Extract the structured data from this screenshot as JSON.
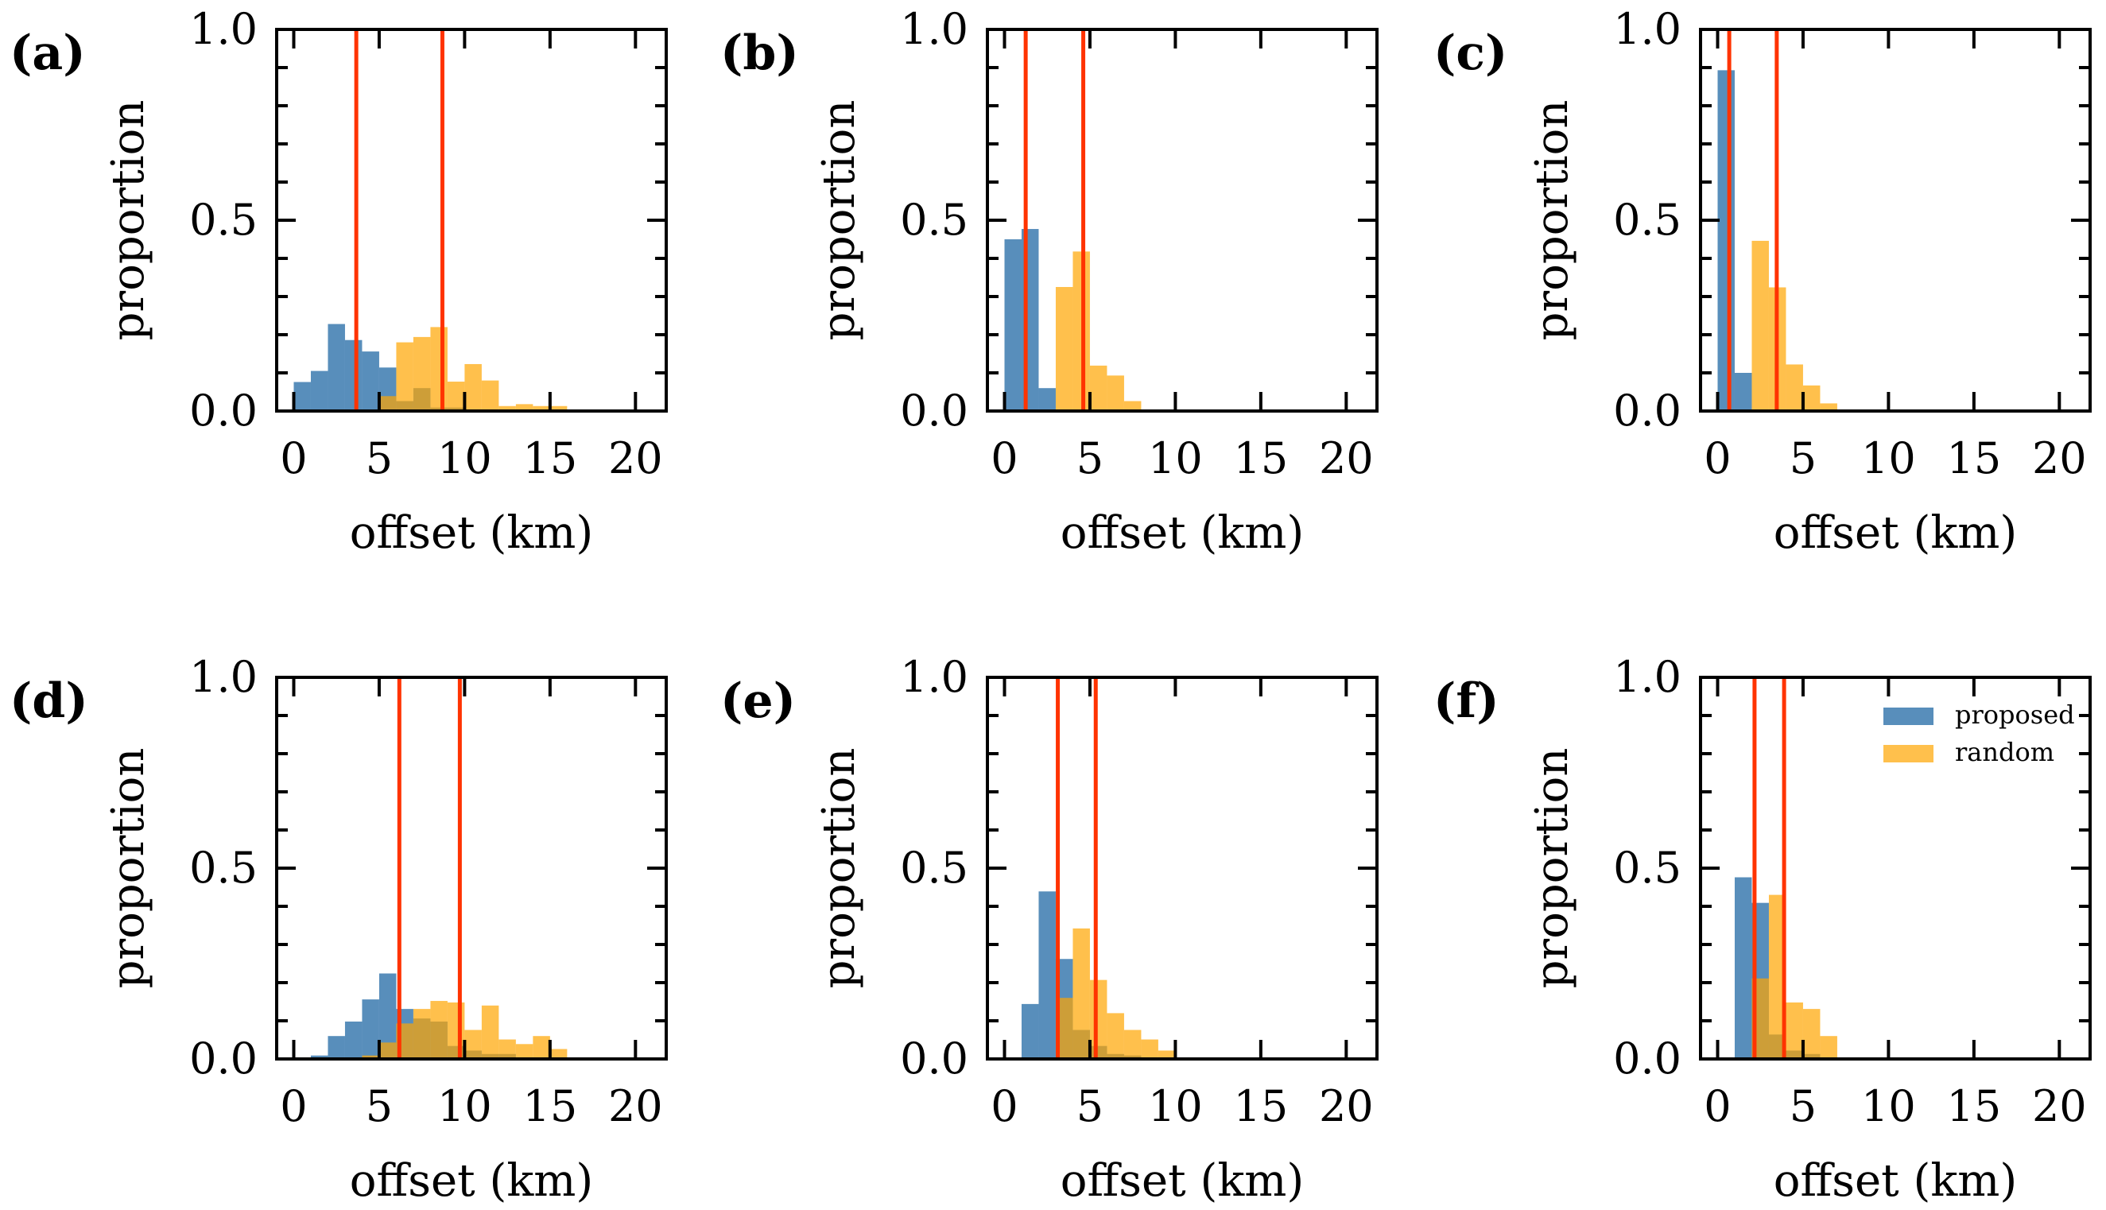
{
  "chart_data": [
    {
      "type": "bar",
      "panel": "(a)",
      "xlabel": "offset (km)",
      "ylabel": "proportion",
      "xlim": [
        -1,
        21.8
      ],
      "ylim": [
        0,
        1
      ],
      "xticks": [
        "0",
        "5",
        "10",
        "15",
        "20"
      ],
      "yticks": [
        "0.0",
        "0.5",
        "1.0"
      ],
      "bin_width": 1,
      "series": [
        {
          "name": "proposed",
          "bin_starts": [
            0,
            1,
            2,
            3,
            4,
            5,
            6,
            7,
            8,
            9
          ],
          "values": [
            0.076,
            0.105,
            0.228,
            0.186,
            0.156,
            0.114,
            0.026,
            0.06,
            0.009,
            0.009
          ]
        },
        {
          "name": "random",
          "bin_starts": [
            5,
            6,
            7,
            8,
            9,
            10,
            11,
            12,
            13,
            14,
            15
          ],
          "values": [
            0.039,
            0.18,
            0.194,
            0.22,
            0.077,
            0.123,
            0.08,
            0.013,
            0.018,
            0.013,
            0.013
          ]
        }
      ],
      "vlines": [
        3.66,
        8.7
      ]
    },
    {
      "type": "bar",
      "panel": "(b)",
      "xlabel": "offset (km)",
      "ylabel": "proportion",
      "xlim": [
        -1,
        21.8
      ],
      "ylim": [
        0,
        1
      ],
      "xticks": [
        "0",
        "5",
        "10",
        "15",
        "20"
      ],
      "yticks": [
        "0.0",
        "0.5",
        "1.0"
      ],
      "bin_width": 1,
      "series": [
        {
          "name": "proposed",
          "bin_starts": [
            0,
            1,
            2
          ],
          "values": [
            0.45,
            0.477,
            0.06
          ]
        },
        {
          "name": "random",
          "bin_starts": [
            3,
            4,
            5,
            6,
            7
          ],
          "values": [
            0.325,
            0.418,
            0.119,
            0.093,
            0.026
          ]
        }
      ],
      "vlines": [
        1.24,
        4.61
      ]
    },
    {
      "type": "bar",
      "panel": "(c)",
      "xlabel": "offset (km)",
      "ylabel": "proportion",
      "xlim": [
        -1,
        21.8
      ],
      "ylim": [
        0,
        1
      ],
      "xticks": [
        "0",
        "5",
        "10",
        "15",
        "20"
      ],
      "yticks": [
        "0.0",
        "0.5",
        "1.0"
      ],
      "bin_width": 1,
      "series": [
        {
          "name": "proposed",
          "bin_starts": [
            0,
            1
          ],
          "values": [
            0.893,
            0.1
          ]
        },
        {
          "name": "random",
          "bin_starts": [
            2,
            3,
            4,
            5,
            6
          ],
          "values": [
            0.446,
            0.324,
            0.122,
            0.067,
            0.02
          ]
        }
      ],
      "vlines": [
        0.68,
        3.46
      ]
    },
    {
      "type": "bar",
      "panel": "(d)",
      "xlabel": "offset (km)",
      "ylabel": "proportion",
      "xlim": [
        -1,
        21.8
      ],
      "ylim": [
        0,
        1
      ],
      "xticks": [
        "0",
        "5",
        "10",
        "15",
        "20"
      ],
      "yticks": [
        "0.0",
        "0.5",
        "1.0"
      ],
      "bin_width": 1,
      "series": [
        {
          "name": "proposed",
          "bin_starts": [
            1,
            2,
            3,
            4,
            5,
            6,
            7,
            8,
            9,
            10,
            11,
            12
          ],
          "values": [
            0.009,
            0.06,
            0.098,
            0.156,
            0.224,
            0.131,
            0.106,
            0.098,
            0.034,
            0.022,
            0.013,
            0.013
          ]
        },
        {
          "name": "random",
          "bin_starts": [
            4,
            5,
            6,
            7,
            8,
            9,
            10,
            11,
            12,
            13,
            14,
            15
          ],
          "values": [
            0.009,
            0.043,
            0.093,
            0.131,
            0.152,
            0.148,
            0.076,
            0.14,
            0.051,
            0.039,
            0.06,
            0.026
          ]
        }
      ],
      "vlines": [
        6.18,
        9.72
      ]
    },
    {
      "type": "bar",
      "panel": "(e)",
      "xlabel": "offset (km)",
      "ylabel": "proportion",
      "xlim": [
        -1,
        21.8
      ],
      "ylim": [
        0,
        1
      ],
      "xticks": [
        "0",
        "5",
        "10",
        "15",
        "20"
      ],
      "yticks": [
        "0.0",
        "0.5",
        "1.0"
      ],
      "bin_width": 1,
      "series": [
        {
          "name": "proposed",
          "bin_starts": [
            1,
            2,
            3,
            4,
            5,
            6,
            7
          ],
          "values": [
            0.144,
            0.439,
            0.262,
            0.076,
            0.034,
            0.013,
            0.009
          ]
        },
        {
          "name": "random",
          "bin_starts": [
            3,
            4,
            5,
            6,
            7,
            8,
            9
          ],
          "values": [
            0.16,
            0.342,
            0.207,
            0.12,
            0.076,
            0.051,
            0.022
          ]
        }
      ],
      "vlines": [
        3.12,
        5.34
      ]
    },
    {
      "type": "bar",
      "panel": "(f)",
      "xlabel": "offset (km)",
      "ylabel": "proportion",
      "xlim": [
        -1,
        21.8
      ],
      "ylim": [
        0,
        1
      ],
      "xticks": [
        "0",
        "5",
        "10",
        "15",
        "20"
      ],
      "yticks": [
        "0.0",
        "0.5",
        "1.0"
      ],
      "bin_width": 1,
      "series": [
        {
          "name": "proposed",
          "bin_starts": [
            1,
            2,
            3,
            4,
            5
          ],
          "values": [
            0.476,
            0.409,
            0.064,
            0.022,
            0.013
          ]
        },
        {
          "name": "random",
          "bin_starts": [
            2,
            3,
            4,
            5,
            6
          ],
          "values": [
            0.211,
            0.43,
            0.148,
            0.131,
            0.06
          ]
        }
      ],
      "vlines": [
        2.16,
        3.89
      ],
      "legend": {
        "placement": "top-right",
        "entries": [
          "proposed",
          "random"
        ]
      }
    }
  ],
  "colors": {
    "proposed": "#4682b4",
    "random": "#ffa500",
    "vline": "#ff3300"
  }
}
